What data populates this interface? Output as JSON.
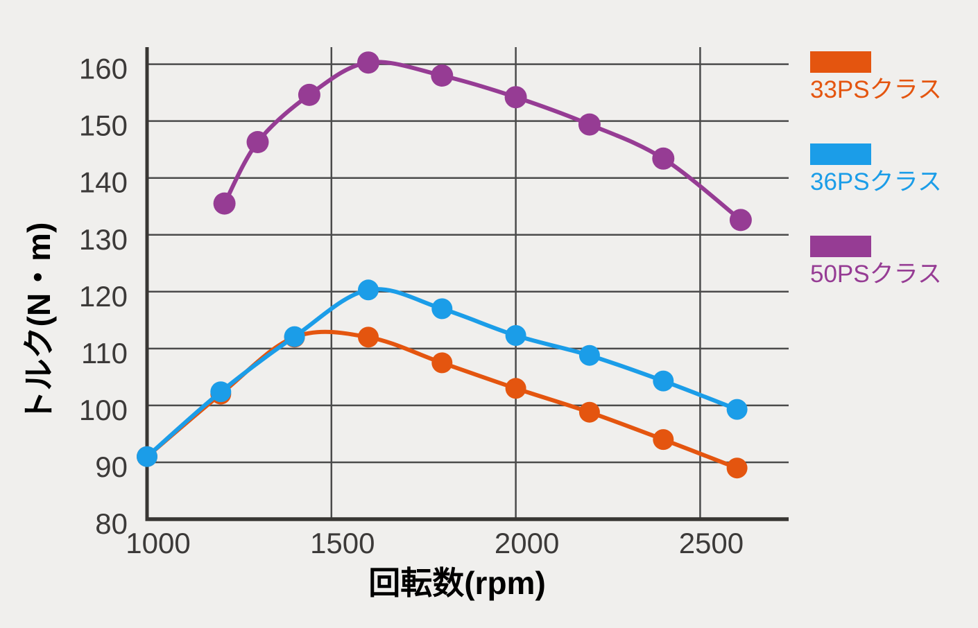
{
  "colors": {
    "background": "#f0efed",
    "grid": "#4b4b4b",
    "axis": "#383633",
    "text": "#3c3a39"
  },
  "chart_data": {
    "type": "line",
    "title": "",
    "xlabel": "回転数(rpm)",
    "ylabel": "トルク(N・m)",
    "xlim": [
      1000,
      2740
    ],
    "ylim": [
      80,
      163
    ],
    "xticks": [
      1000,
      1500,
      2000,
      2500
    ],
    "yticks": [
      80,
      90,
      100,
      110,
      120,
      130,
      140,
      150,
      160
    ],
    "grid": true,
    "legend_position": "right",
    "series": [
      {
        "name": "33PSクラス",
        "color": "#e4550f",
        "x": [
          1000,
          1200,
          1400,
          1600,
          1800,
          2000,
          2200,
          2400,
          2600
        ],
        "values": [
          91,
          102,
          112,
          112,
          107.5,
          103,
          98.8,
          94,
          89
        ]
      },
      {
        "name": "36PSクラス",
        "color": "#1b9de8",
        "x": [
          1000,
          1200,
          1400,
          1600,
          1800,
          2000,
          2200,
          2400,
          2600
        ],
        "values": [
          91,
          102.4,
          112.1,
          120.3,
          117,
          112.3,
          108.8,
          104.3,
          99.3
        ]
      },
      {
        "name": "50PSクラス",
        "color": "#963c94",
        "x": [
          1210,
          1300,
          1440,
          1600,
          1800,
          2000,
          2200,
          2400,
          2610
        ],
        "values": [
          135.5,
          146.3,
          154.6,
          160.3,
          158,
          154.2,
          149.4,
          143.4,
          132.6
        ]
      }
    ]
  }
}
